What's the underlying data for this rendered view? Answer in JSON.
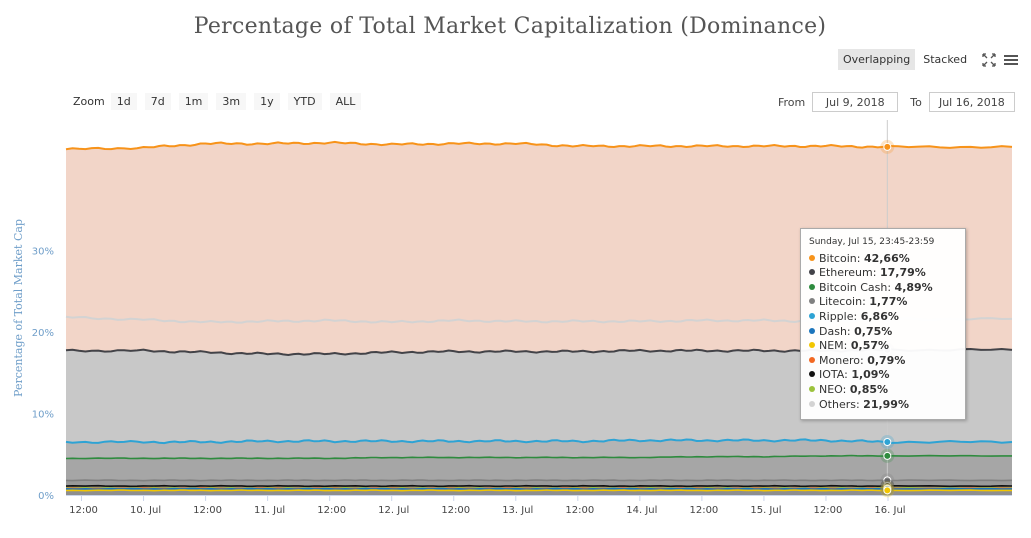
{
  "header": {
    "title": "Percentage of Total Market Capitalization (Dominance)",
    "modes": [
      {
        "label": "Overlapping",
        "active": true
      },
      {
        "label": "Stacked",
        "active": false
      }
    ]
  },
  "zoom": {
    "label": "Zoom",
    "buttons": [
      "1d",
      "7d",
      "1m",
      "3m",
      "1y",
      "YTD",
      "ALL"
    ]
  },
  "range": {
    "from_label": "From",
    "from_value": "Jul 9, 2018",
    "to_label": "To",
    "to_value": "Jul 16, 2018"
  },
  "tooltip": {
    "header": "Sunday, Jul 15, 23:45-23:59",
    "rows": [
      {
        "name": "Bitcoin",
        "value": "42,66%",
        "color": "#f7931a"
      },
      {
        "name": "Ethereum",
        "value": "17,79%",
        "color": "#434348"
      },
      {
        "name": "Bitcoin Cash",
        "value": "4,89%",
        "color": "#2e8b3e"
      },
      {
        "name": "Litecoin",
        "value": "1,77%",
        "color": "#808080"
      },
      {
        "name": "Ripple",
        "value": "6,86%",
        "color": "#2ea3d4"
      },
      {
        "name": "Dash",
        "value": "0,75%",
        "color": "#1c75bc"
      },
      {
        "name": "NEM",
        "value": "0,57%",
        "color": "#f2c600"
      },
      {
        "name": "Monero",
        "value": "0,79%",
        "color": "#f26822"
      },
      {
        "name": "IOTA",
        "value": "1,09%",
        "color": "#111111"
      },
      {
        "name": "NEO",
        "value": "0,85%",
        "color": "#9bc23c"
      },
      {
        "name": "Others",
        "value": "21,99%",
        "color": "#d3d3d3"
      }
    ]
  },
  "chart_data": {
    "type": "area",
    "title": "Percentage of Total Market Capitalization (Dominance)",
    "ylabel": "Percentage of Total Market Cap",
    "ylim": [
      0,
      46
    ],
    "y_ticks": [
      0,
      10,
      20,
      30
    ],
    "y_tick_labels": [
      "0%",
      "10%",
      "20%",
      "30%"
    ],
    "x_range": [
      "2018-07-09T09:00",
      "2018-07-16T23:59"
    ],
    "x_ticks": [
      {
        "label": "12:00",
        "t": "2018-07-09T12:00"
      },
      {
        "label": "10. Jul",
        "t": "2018-07-10T00:00"
      },
      {
        "label": "12:00",
        "t": "2018-07-10T12:00"
      },
      {
        "label": "11. Jul",
        "t": "2018-07-11T00:00"
      },
      {
        "label": "12:00",
        "t": "2018-07-11T12:00"
      },
      {
        "label": "12. Jul",
        "t": "2018-07-12T00:00"
      },
      {
        "label": "12:00",
        "t": "2018-07-12T12:00"
      },
      {
        "label": "13. Jul",
        "t": "2018-07-13T00:00"
      },
      {
        "label": "12:00",
        "t": "2018-07-13T12:00"
      },
      {
        "label": "14. Jul",
        "t": "2018-07-14T00:00"
      },
      {
        "label": "12:00",
        "t": "2018-07-14T12:00"
      },
      {
        "label": "15. Jul",
        "t": "2018-07-15T00:00"
      },
      {
        "label": "12:00",
        "t": "2018-07-15T12:00"
      },
      {
        "label": "16. Jul",
        "t": "2018-07-16T00:00"
      }
    ],
    "x": [
      "2018-07-09T09:00",
      "2018-07-10T00:00",
      "2018-07-10T12:00",
      "2018-07-11T00:00",
      "2018-07-11T12:00",
      "2018-07-12T00:00",
      "2018-07-12T12:00",
      "2018-07-13T00:00",
      "2018-07-13T12:00",
      "2018-07-14T00:00",
      "2018-07-14T12:00",
      "2018-07-15T00:00",
      "2018-07-15T12:00",
      "2018-07-16T00:00",
      "2018-07-16T23:59"
    ],
    "series": [
      {
        "name": "Bitcoin",
        "color": "#f7931a",
        "fill": "#f2d5c8",
        "values": [
          42.4,
          42.6,
          43.1,
          43.1,
          43.2,
          43.0,
          43.1,
          43.1,
          42.8,
          42.8,
          42.8,
          42.8,
          42.8,
          42.7,
          42.7
        ]
      },
      {
        "name": "Others",
        "color": "#d3d3d3",
        "fill": "none",
        "values": [
          21.8,
          21.5,
          21.2,
          21.3,
          21.4,
          21.2,
          21.4,
          21.3,
          21.3,
          21.3,
          21.4,
          21.4,
          21.3,
          21.6,
          21.6
        ]
      },
      {
        "name": "Ethereum",
        "color": "#434348",
        "fill": "#c8c8c8",
        "values": [
          17.7,
          17.7,
          17.5,
          17.3,
          17.3,
          17.5,
          17.6,
          17.6,
          17.6,
          17.7,
          17.7,
          17.7,
          17.7,
          17.8,
          17.8
        ]
      },
      {
        "name": "Ripple",
        "color": "#2ea3d4",
        "fill": "#b4b4b4",
        "values": [
          6.5,
          6.5,
          6.5,
          6.6,
          6.6,
          6.6,
          6.6,
          6.6,
          6.6,
          6.7,
          6.7,
          6.7,
          6.7,
          6.5,
          6.5
        ]
      },
      {
        "name": "Bitcoin Cash",
        "color": "#2e8b3e",
        "fill": "#a6a6a6",
        "values": [
          4.5,
          4.5,
          4.5,
          4.5,
          4.5,
          4.6,
          4.6,
          4.6,
          4.6,
          4.6,
          4.7,
          4.7,
          4.8,
          4.8,
          4.8
        ]
      },
      {
        "name": "Litecoin",
        "color": "#808080",
        "fill": "#9a9a9a",
        "values": [
          1.8,
          1.8,
          1.8,
          1.8,
          1.8,
          1.8,
          1.8,
          1.8,
          1.8,
          1.8,
          1.8,
          1.8,
          1.8,
          1.8,
          1.8
        ]
      },
      {
        "name": "IOTA",
        "color": "#111111",
        "fill": "#8e8e8e",
        "values": [
          1.1,
          1.1,
          1.1,
          1.1,
          1.1,
          1.1,
          1.1,
          1.1,
          1.1,
          1.1,
          1.1,
          1.1,
          1.1,
          1.1,
          1.1
        ]
      },
      {
        "name": "NEO",
        "color": "#9bc23c",
        "fill": "none",
        "values": [
          0.85,
          0.85,
          0.85,
          0.85,
          0.85,
          0.85,
          0.85,
          0.85,
          0.85,
          0.85,
          0.85,
          0.85,
          0.85,
          0.85,
          0.85
        ]
      },
      {
        "name": "Monero",
        "color": "#f26822",
        "fill": "none",
        "values": [
          0.79,
          0.79,
          0.79,
          0.79,
          0.79,
          0.79,
          0.79,
          0.79,
          0.79,
          0.79,
          0.79,
          0.79,
          0.79,
          0.79,
          0.79
        ]
      },
      {
        "name": "Dash",
        "color": "#1c75bc",
        "fill": "none",
        "values": [
          0.75,
          0.75,
          0.75,
          0.75,
          0.75,
          0.75,
          0.75,
          0.75,
          0.75,
          0.75,
          0.75,
          0.75,
          0.75,
          0.75,
          0.75
        ]
      },
      {
        "name": "NEM",
        "color": "#f2c600",
        "fill": "none",
        "values": [
          0.57,
          0.57,
          0.57,
          0.57,
          0.57,
          0.57,
          0.57,
          0.57,
          0.57,
          0.57,
          0.57,
          0.57,
          0.57,
          0.57,
          0.57
        ]
      }
    ],
    "hover_time": "2018-07-15T23:52"
  }
}
